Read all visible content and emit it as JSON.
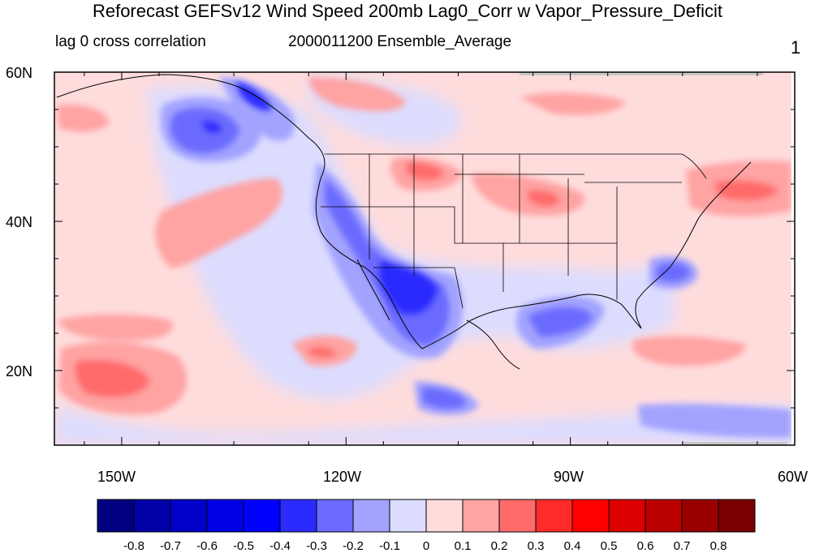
{
  "header": {
    "title": "Reforecast GEFSv12 Wind Speed 200mb Lag0_Corr w Vapor_Pressure_Deficit",
    "left_string": "lag 0 cross correlation",
    "center_string": "2000011200 Ensemble_Average",
    "right_string": "1"
  },
  "chart_data": {
    "type": "heatmap",
    "title": "Reforecast GEFSv12 Wind Speed 200mb Lag0_Corr w Vapor_Pressure_Deficit",
    "subtitle_left": "lag 0 cross correlation",
    "subtitle_center": "2000011200 Ensemble_Average",
    "panel_label": "1",
    "x_axis": {
      "ticks": [
        "150W",
        "120W",
        "90W",
        "60W"
      ],
      "values": [
        -150,
        -120,
        -90,
        -60
      ],
      "range": [
        -159,
        -60
      ]
    },
    "y_axis": {
      "ticks": [
        "20N",
        "40N",
        "60N"
      ],
      "values": [
        20,
        40,
        60
      ],
      "range": [
        10,
        60
      ]
    },
    "colorbar": {
      "levels": [
        "-0.8",
        "-0.7",
        "-0.6",
        "-0.5",
        "-0.4",
        "-0.3",
        "-0.2",
        "-0.1",
        "0",
        "0.1",
        "0.2",
        "0.3",
        "0.4",
        "0.5",
        "0.6",
        "0.7",
        "0.8"
      ],
      "colors": [
        "#000080",
        "#0000a6",
        "#0000c8",
        "#0000e6",
        "#0000ff",
        "#2b2bff",
        "#6b6bff",
        "#a3a3ff",
        "#dcdcff",
        "#ffdcdc",
        "#ffa3a3",
        "#ff6b6b",
        "#ff2b2b",
        "#ff0000",
        "#dd0000",
        "#bb0000",
        "#990000",
        "#7a0000"
      ]
    },
    "features": [
      {
        "lon": -114,
        "lat": 30,
        "value": -0.55
      },
      {
        "lon": -116,
        "lat": 35,
        "value": -0.45
      },
      {
        "lon": -121,
        "lat": 39,
        "value": -0.45
      },
      {
        "lon": -133,
        "lat": 57,
        "value": -0.6
      },
      {
        "lon": -142,
        "lat": 52,
        "value": -0.45
      },
      {
        "lon": -92,
        "lat": 26,
        "value": -0.45
      },
      {
        "lon": -106,
        "lat": 15,
        "value": -0.45
      },
      {
        "lon": -77,
        "lat": 33,
        "value": -0.3
      },
      {
        "lon": -152,
        "lat": 20,
        "value": 0.3
      },
      {
        "lon": -145,
        "lat": 30,
        "value": 0.2
      },
      {
        "lon": -126,
        "lat": 22,
        "value": 0.25
      },
      {
        "lon": -108,
        "lat": 45,
        "value": 0.25
      },
      {
        "lon": -93,
        "lat": 41,
        "value": 0.3
      },
      {
        "lon": -62,
        "lat": 42,
        "value": 0.3
      },
      {
        "lon": -120,
        "lat": 57,
        "value": 0.2
      },
      {
        "lon": -80,
        "lat": 20,
        "value": 0.2
      },
      {
        "lon": -70,
        "lat": 13,
        "value": -0.25
      }
    ]
  }
}
